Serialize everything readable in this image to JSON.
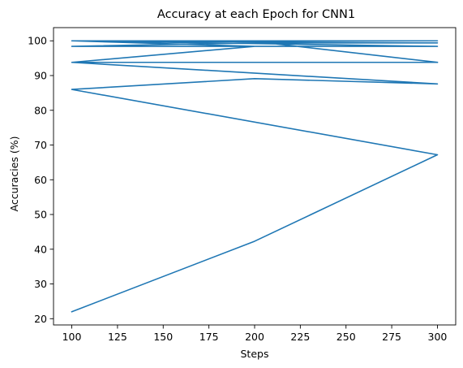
{
  "chart_data": {
    "type": "line",
    "title": "Accuracy at each Epoch for CNN1",
    "xlabel": "Steps",
    "ylabel": "Accuracies (%)",
    "xlim": [
      90,
      310
    ],
    "ylim": [
      18.2,
      103.8
    ],
    "x_ticks": [
      100,
      125,
      150,
      175,
      200,
      225,
      250,
      275,
      300
    ],
    "y_ticks": [
      20,
      30,
      40,
      50,
      60,
      70,
      80,
      90,
      100
    ],
    "grid": false,
    "legend": "none",
    "colors": {
      "series": "#1f77b4"
    },
    "series": [
      {
        "x": [
          100,
          200,
          300,
          100,
          200,
          300,
          100,
          200,
          300,
          100,
          200,
          300,
          100,
          200,
          300,
          100,
          200,
          300,
          100,
          200,
          300,
          100,
          200,
          300,
          100,
          200,
          300,
          100,
          200,
          300
        ],
        "y": [
          22.0,
          42.3,
          67.2,
          86.0,
          89.1,
          87.6,
          93.8,
          93.8,
          93.8,
          93.8,
          98.4,
          98.4,
          98.4,
          99.4,
          99.4,
          100.0,
          100.0,
          100.0,
          100.0,
          98.4,
          98.4,
          100.0,
          100.0,
          100.0,
          100.0,
          100.0,
          100.0,
          100.0,
          99.8,
          93.8
        ]
      }
    ]
  }
}
